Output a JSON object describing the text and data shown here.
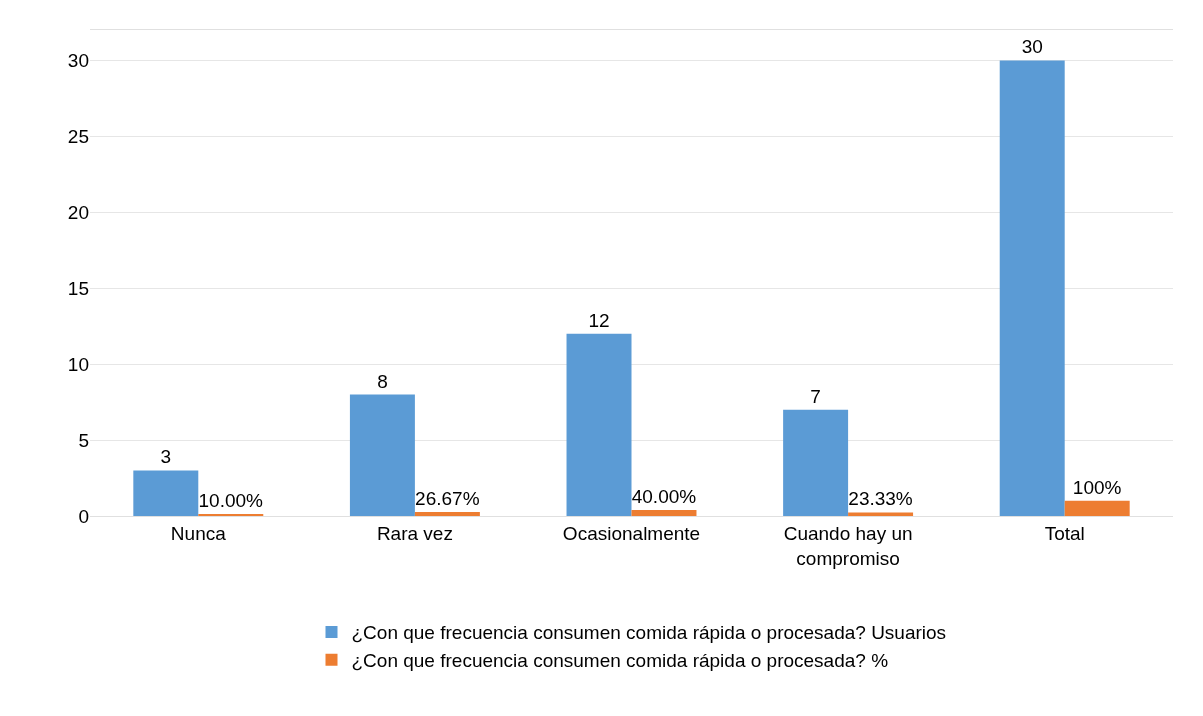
{
  "chart_data": {
    "type": "bar",
    "categories": [
      "Nunca",
      "Rara vez",
      "Ocasionalmente",
      "Cuando hay un compromiso",
      "Total"
    ],
    "series": [
      {
        "name": "¿Con que frecuencia consumen comida rápida o procesada? Usuarios",
        "color": "#5b9bd5",
        "values": [
          3,
          8,
          12,
          7,
          30
        ],
        "value_labels": [
          "3",
          "8",
          "12",
          "7",
          "30"
        ]
      },
      {
        "name": "¿Con que frecuencia consumen comida rápida o procesada? %",
        "color": "#ed7d31",
        "values": [
          0.1,
          0.2667,
          0.4,
          0.2333,
          1
        ],
        "value_labels": [
          "10.00%",
          "26.67%",
          "40.00%",
          "23.33%",
          "100%"
        ]
      }
    ],
    "ylim": [
      0,
      32
    ],
    "yticks": [
      0,
      5,
      10,
      15,
      20,
      25,
      30
    ],
    "grid": "y",
    "legend": "bottom"
  }
}
